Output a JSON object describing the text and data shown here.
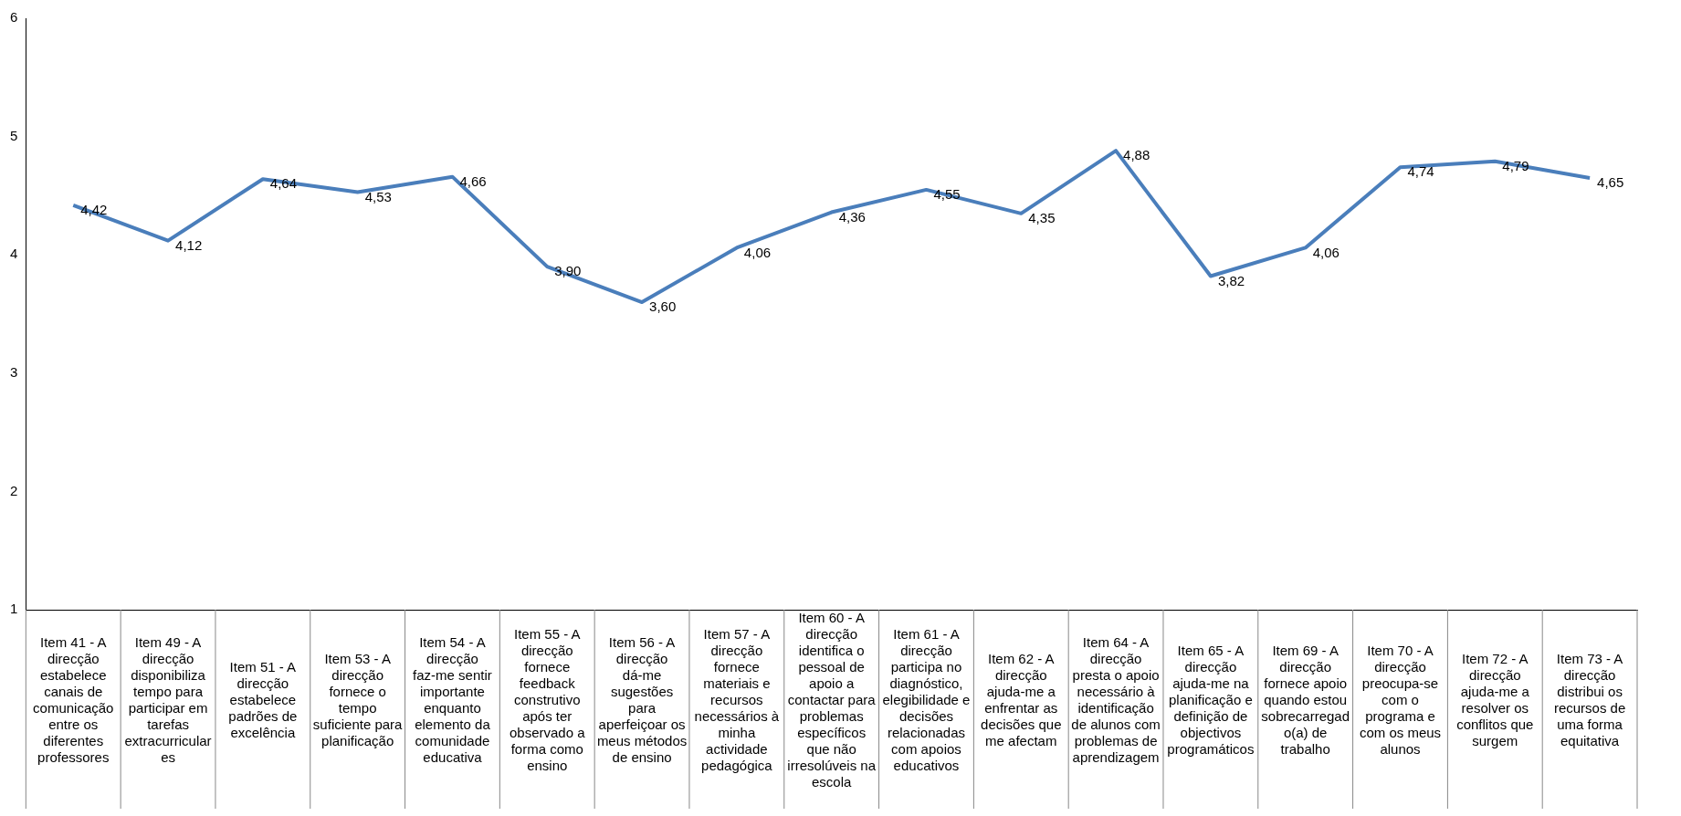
{
  "chart_data": {
    "type": "line",
    "categories": [
      "Item 41 - A direcção estabelece canais de comunicação entre os diferentes professores",
      "Item 49 - A direcção disponibiliza tempo para participar em tarefas extracurriculares",
      "Item 51 - A direcção estabelece padrões de excelência",
      "Item 53 - A direcção fornece o tempo suficiente para planificação",
      "Item 54 - A direcção faz-me sentir importante enquanto elemento da comunidade educativa",
      "Item 55 - A direcção fornece feedback construtivo após ter observado a forma como ensino",
      "Item 56 - A direcção dá-me sugestões para aperfeiçoar os meus métodos de ensino",
      "Item 57 - A direcção fornece materiais e recursos necessários à minha actividade pedagógica",
      "Item 60 - A direcção identifica o pessoal de apoio a contactar para problemas específicos que não irresolúveis na escola",
      "Item 61 - A direcção participa no diagnóstico, elegibilidade e decisões relacionadas com apoios educativos",
      "Item 62 - A direcção ajuda-me a enfrentar as decisões que me afectam",
      "Item 64 - A direcção presta o apoio necessário à identificação de alunos com problemas de aprendizagem",
      "Item 65 - A direcção ajuda-me na planificação e definição de objectivos programáticos",
      "Item 69 - A direcção fornece apoio quando estou sobrecarregado(a) de trabalho",
      "Item 70 - A direcção preocupa-se com o programa e com os meus alunos",
      "Item 72 - A direcção ajuda-me a resolver os conflitos que surgem",
      "Item 73 - A direcção distribui os recursos de uma forma equitativa"
    ],
    "series": [
      {
        "color": "#4a7ebb",
        "values": [
          4.42,
          4.12,
          4.64,
          4.53,
          4.66,
          3.9,
          3.6,
          4.06,
          4.36,
          4.55,
          4.35,
          4.88,
          3.82,
          4.06,
          4.74,
          4.79,
          4.65
        ],
        "value_labels": [
          "4,42",
          "4,12",
          "4,64",
          "4,53",
          "4,66",
          "3,90",
          "3,60",
          "4,06",
          "4,36",
          "4,55",
          "4,35",
          "4,88",
          "3,82",
          "4,06",
          "4,74",
          "4,79",
          "4,65"
        ]
      }
    ],
    "ylim": [
      1,
      6
    ],
    "yticks": [
      1,
      2,
      3,
      4,
      5,
      6
    ],
    "grid": false,
    "legend": false,
    "marker": "none",
    "line_style": "solid"
  }
}
